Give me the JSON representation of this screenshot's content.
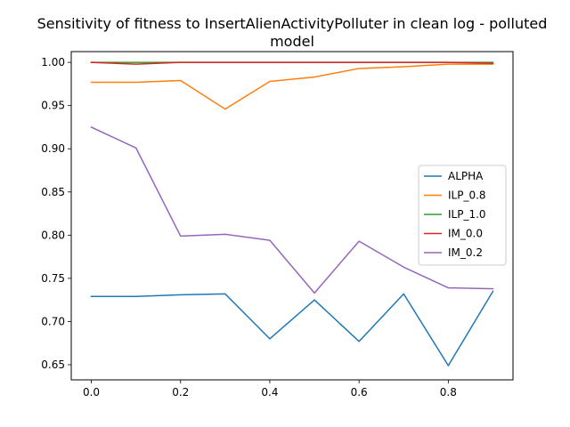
{
  "chart_data": {
    "type": "line",
    "title_lines": [
      "Sensitivity of fitness to InsertAlienActivityPolluter in clean log - polluted",
      "model"
    ],
    "xlabel": "",
    "ylabel": "",
    "x": [
      0.0,
      0.1,
      0.2,
      0.3,
      0.4,
      0.5,
      0.6,
      0.7,
      0.8,
      0.9
    ],
    "xlim": [
      -0.045,
      0.945
    ],
    "ylim": [
      0.6325,
      1.0125
    ],
    "xticks": [
      0.0,
      0.2,
      0.4,
      0.6,
      0.8
    ],
    "xtick_labels": [
      "0.0",
      "0.2",
      "0.4",
      "0.6",
      "0.8"
    ],
    "yticks": [
      0.65,
      0.7,
      0.75,
      0.8,
      0.85,
      0.9,
      0.95,
      1.0
    ],
    "ytick_labels": [
      "0.65",
      "0.70",
      "0.75",
      "0.80",
      "0.85",
      "0.90",
      "0.95",
      "1.00"
    ],
    "grid": false,
    "legend_position": "center-right",
    "series": [
      {
        "name": "ALPHA",
        "color": "#1f77b4",
        "values": [
          0.729,
          0.729,
          0.731,
          0.732,
          0.68,
          0.725,
          0.677,
          0.732,
          0.649,
          0.735
        ]
      },
      {
        "name": "ILP_0.8",
        "color": "#ff7f0e",
        "values": [
          0.977,
          0.977,
          0.979,
          0.946,
          0.978,
          0.983,
          0.993,
          0.995,
          0.998,
          0.998
        ]
      },
      {
        "name": "ILP_1.0",
        "color": "#2ca02c",
        "values": [
          1.0,
          1.0,
          1.0,
          1.0,
          1.0,
          1.0,
          1.0,
          1.0,
          1.0,
          1.0
        ]
      },
      {
        "name": "IM_0.0",
        "color": "#d62728",
        "values": [
          1.0,
          0.998,
          1.0,
          1.0,
          1.0,
          1.0,
          1.0,
          1.0,
          1.0,
          0.999
        ]
      },
      {
        "name": "IM_0.2",
        "color": "#9467bd",
        "values": [
          0.925,
          0.901,
          0.799,
          0.801,
          0.794,
          0.733,
          0.793,
          0.763,
          0.739,
          0.738
        ]
      }
    ]
  }
}
